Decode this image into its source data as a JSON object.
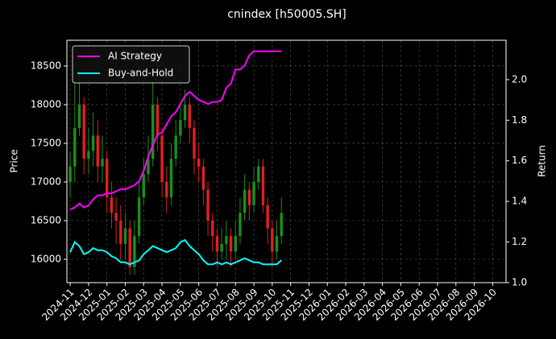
{
  "chart_data": {
    "type": "candlestick",
    "title": "cnindex [h50005.SH]",
    "ylabel": "Price",
    "y2label": "Return",
    "x": [
      0,
      0.25,
      0.5,
      0.75,
      1,
      1.25,
      1.5,
      1.75,
      2,
      2.25,
      2.5,
      2.75,
      3,
      3.25,
      3.5,
      3.75,
      4,
      4.25,
      4.5,
      4.75,
      5,
      5.25,
      5.5,
      5.75,
      6,
      6.25,
      6.5,
      6.75,
      7,
      7.25,
      7.5,
      7.75,
      8,
      8.25,
      8.5,
      8.75,
      9,
      9.25,
      9.5,
      9.75,
      10,
      10.25,
      10.5,
      10.75,
      11,
      11.25,
      11.5
    ],
    "open": [
      17000,
      17200,
      17700,
      18000,
      17300,
      17400,
      17600,
      17200,
      17300,
      16800,
      16600,
      16500,
      16200,
      16400,
      15900,
      16300,
      16800,
      17100,
      17300,
      18000,
      17600,
      17000,
      16800,
      17300,
      17600,
      17800,
      18000,
      17700,
      17300,
      17200,
      16900,
      16500,
      16300,
      16100,
      16200,
      16300,
      16100,
      16300,
      16600,
      16900,
      16700,
      17000,
      17200,
      16700,
      16400,
      16100,
      16300
    ],
    "high": [
      17400,
      18300,
      18400,
      18100,
      17700,
      17900,
      17800,
      17600,
      17400,
      17000,
      16800,
      16700,
      16600,
      16500,
      16500,
      17000,
      17300,
      17600,
      18300,
      18100,
      17700,
      17200,
      17500,
      17800,
      18000,
      18200,
      18100,
      17800,
      17500,
      17300,
      17000,
      16600,
      16400,
      16400,
      16500,
      16400,
      16500,
      16800,
      17100,
      17000,
      17200,
      17300,
      17300,
      16800,
      16500,
      16500,
      16800
    ],
    "low": [
      16800,
      17000,
      17600,
      17100,
      17100,
      17200,
      17000,
      17000,
      16600,
      16400,
      16200,
      16000,
      16000,
      15800,
      15800,
      16200,
      16700,
      17000,
      17200,
      17400,
      16800,
      16600,
      16700,
      17200,
      17500,
      17700,
      17500,
      17100,
      17000,
      16700,
      16300,
      16100,
      15900,
      16000,
      16000,
      15900,
      16000,
      16200,
      16500,
      16500,
      16600,
      16900,
      16600,
      16200,
      15900,
      16000,
      16200
    ],
    "close": [
      17200,
      17700,
      18000,
      17300,
      17400,
      17600,
      17200,
      17300,
      16800,
      16600,
      16500,
      16200,
      16400,
      15900,
      16300,
      16800,
      17100,
      17300,
      18000,
      17600,
      17000,
      16800,
      17300,
      17600,
      17800,
      18000,
      17700,
      17300,
      17200,
      16900,
      16500,
      16300,
      16100,
      16200,
      16300,
      16100,
      16300,
      16600,
      16900,
      16700,
      17000,
      17200,
      16700,
      16400,
      16100,
      16300,
      16600
    ],
    "up_color": "#1a8f1a",
    "down_color": "#e01f1f",
    "series": [
      {
        "name": "AI Strategy",
        "color": "#ff00ff",
        "axis": "y2",
        "values": [
          1.36,
          1.37,
          1.39,
          1.37,
          1.38,
          1.41,
          1.43,
          1.43,
          1.44,
          1.44,
          1.45,
          1.46,
          1.46,
          1.47,
          1.48,
          1.5,
          1.55,
          1.62,
          1.68,
          1.73,
          1.74,
          1.78,
          1.82,
          1.84,
          1.88,
          1.92,
          1.94,
          1.92,
          1.9,
          1.89,
          1.88,
          1.89,
          1.89,
          1.9,
          1.96,
          1.98,
          2.05,
          2.05,
          2.07,
          2.12,
          2.14,
          2.14,
          2.14,
          2.14,
          2.14,
          2.14,
          2.14
        ]
      },
      {
        "name": "Buy-and-Hold",
        "color": "#00ffff",
        "axis": "y2",
        "values": [
          1.15,
          1.2,
          1.18,
          1.14,
          1.15,
          1.17,
          1.16,
          1.16,
          1.15,
          1.13,
          1.12,
          1.1,
          1.1,
          1.09,
          1.1,
          1.11,
          1.14,
          1.16,
          1.18,
          1.17,
          1.16,
          1.15,
          1.16,
          1.17,
          1.2,
          1.21,
          1.18,
          1.16,
          1.14,
          1.11,
          1.09,
          1.09,
          1.1,
          1.09,
          1.1,
          1.09,
          1.1,
          1.11,
          1.12,
          1.11,
          1.1,
          1.1,
          1.09,
          1.09,
          1.09,
          1.09,
          1.11
        ]
      }
    ],
    "xlim": [
      -0.18,
      23.73
    ],
    "xticks": [
      {
        "value": 0,
        "label": "2024-11"
      },
      {
        "value": 1,
        "label": "2024-12"
      },
      {
        "value": 2,
        "label": "2025-01"
      },
      {
        "value": 3,
        "label": "2025-02"
      },
      {
        "value": 4,
        "label": "2025-03"
      },
      {
        "value": 5,
        "label": "2025-04"
      },
      {
        "value": 6,
        "label": "2025-05"
      },
      {
        "value": 7,
        "label": "2025-06"
      },
      {
        "value": 8,
        "label": "2025-07"
      },
      {
        "value": 9,
        "label": "2025-08"
      },
      {
        "value": 10,
        "label": "2025-09"
      },
      {
        "value": 11,
        "label": "2025-10"
      },
      {
        "value": 12,
        "label": "2025-11"
      },
      {
        "value": 13,
        "label": "2025-12"
      },
      {
        "value": 14,
        "label": "2026-01"
      },
      {
        "value": 15,
        "label": "2026-02"
      },
      {
        "value": 16,
        "label": "2026-03"
      },
      {
        "value": 17,
        "label": "2026-04"
      },
      {
        "value": 18,
        "label": "2026-05"
      },
      {
        "value": 19,
        "label": "2026-06"
      },
      {
        "value": 20,
        "label": "2026-07"
      },
      {
        "value": 21,
        "label": "2026-08"
      },
      {
        "value": 22,
        "label": "2026-09"
      },
      {
        "value": 23,
        "label": "2026-10"
      }
    ],
    "ylim": [
      15698,
      18833
    ],
    "yticks": [
      16000,
      16500,
      17000,
      17500,
      18000,
      18500
    ],
    "y2lim": [
      1.0,
      2.194
    ],
    "y2ticks": [
      {
        "value": 1,
        "label": "1.0"
      },
      1.2,
      1.4,
      1.6,
      1.8,
      {
        "value": 2,
        "label": "2.0"
      }
    ],
    "grid": true,
    "legend": "upper left"
  }
}
